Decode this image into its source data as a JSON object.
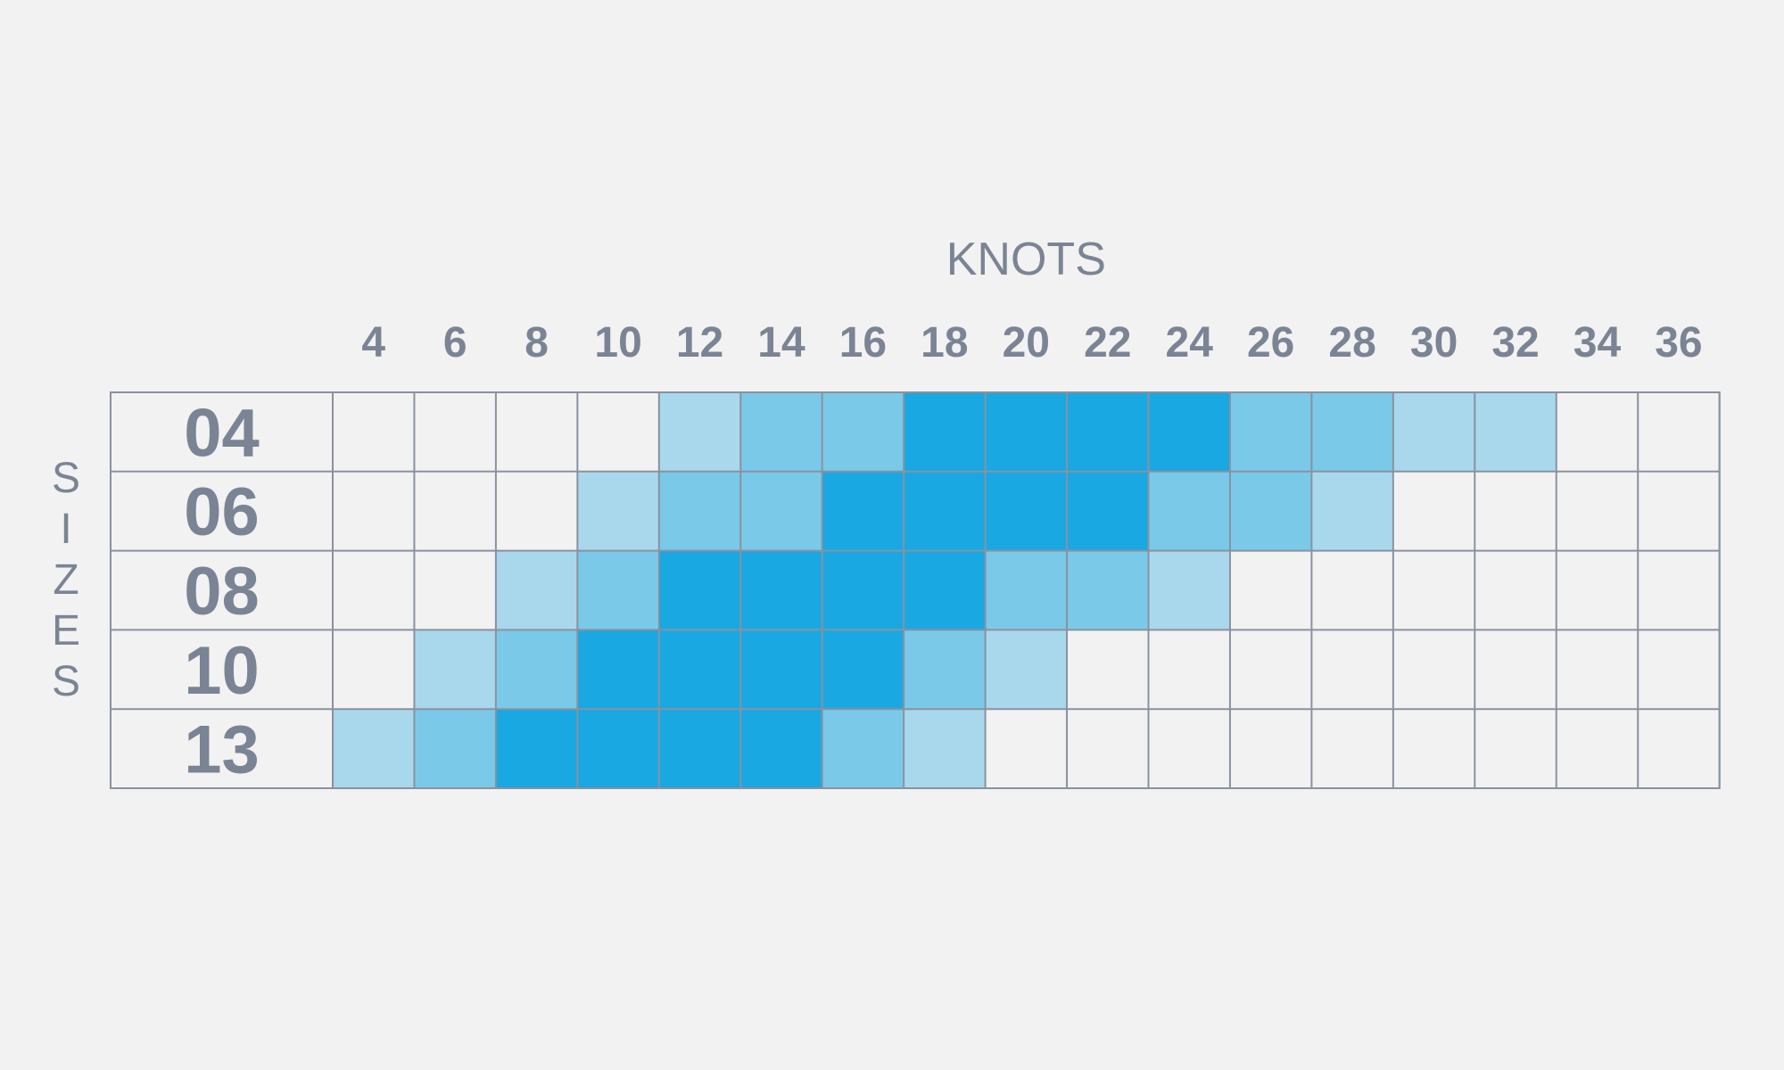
{
  "chart_data": {
    "type": "heatmap",
    "title": "",
    "xlabel": "KNOTS",
    "ylabel": "SIZES",
    "x": [
      "4",
      "6",
      "8",
      "10",
      "12",
      "14",
      "16",
      "18",
      "20",
      "22",
      "24",
      "26",
      "28",
      "30",
      "32",
      "34",
      "36"
    ],
    "y": [
      "04",
      "06",
      "08",
      "10",
      "13"
    ],
    "levels": {
      "0": "none",
      "1": "light",
      "2": "medium",
      "3": "dark"
    },
    "colors": {
      "0": "#f2f2f2",
      "1": "#a9d8ed",
      "2": "#7bc9e8",
      "3": "#19a8e1"
    },
    "values": [
      [
        0,
        0,
        0,
        0,
        1,
        2,
        2,
        3,
        3,
        3,
        3,
        2,
        2,
        1,
        1,
        0,
        0
      ],
      [
        0,
        0,
        0,
        1,
        2,
        2,
        3,
        3,
        3,
        3,
        2,
        2,
        1,
        0,
        0,
        0,
        0
      ],
      [
        0,
        0,
        1,
        2,
        3,
        3,
        3,
        3,
        2,
        2,
        1,
        0,
        0,
        0,
        0,
        0,
        0
      ],
      [
        0,
        1,
        2,
        3,
        3,
        3,
        3,
        2,
        1,
        0,
        0,
        0,
        0,
        0,
        0,
        0,
        0
      ],
      [
        1,
        2,
        3,
        3,
        3,
        3,
        2,
        1,
        0,
        0,
        0,
        0,
        0,
        0,
        0,
        0,
        0
      ]
    ],
    "text_color": "#7b8494",
    "grid_color": "#8a91a0"
  }
}
